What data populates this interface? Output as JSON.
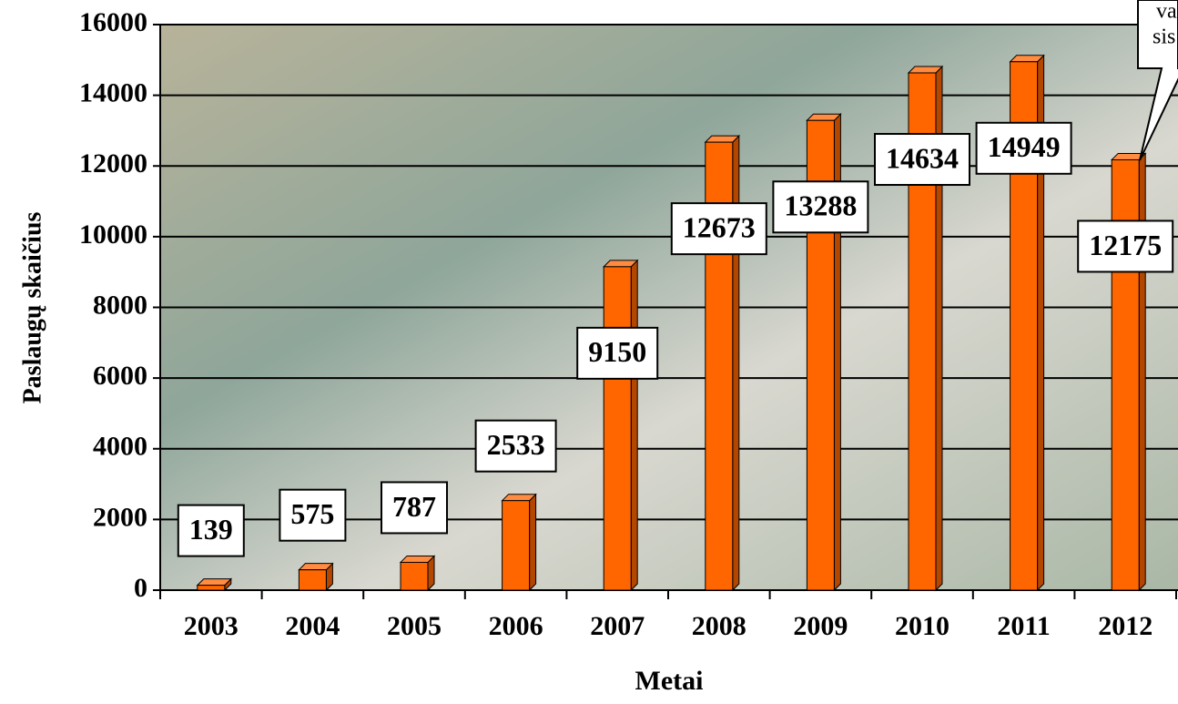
{
  "chart_data": {
    "type": "bar",
    "x_label": "Metai",
    "y_label": "Paslaugų skaičius",
    "categories": [
      "2003",
      "2004",
      "2005",
      "2006",
      "2007",
      "2008",
      "2009",
      "2010",
      "2011",
      "2012"
    ],
    "values": [
      139,
      575,
      787,
      2533,
      9150,
      12673,
      13288,
      14634,
      14949,
      12175
    ],
    "color": "#ff6600",
    "ylim": [
      0,
      16000
    ],
    "yticks": [
      0,
      2000,
      4000,
      6000,
      8000,
      10000,
      12000,
      14000,
      16000
    ],
    "grid": true,
    "annotation": [
      "va",
      "sis"
    ]
  }
}
